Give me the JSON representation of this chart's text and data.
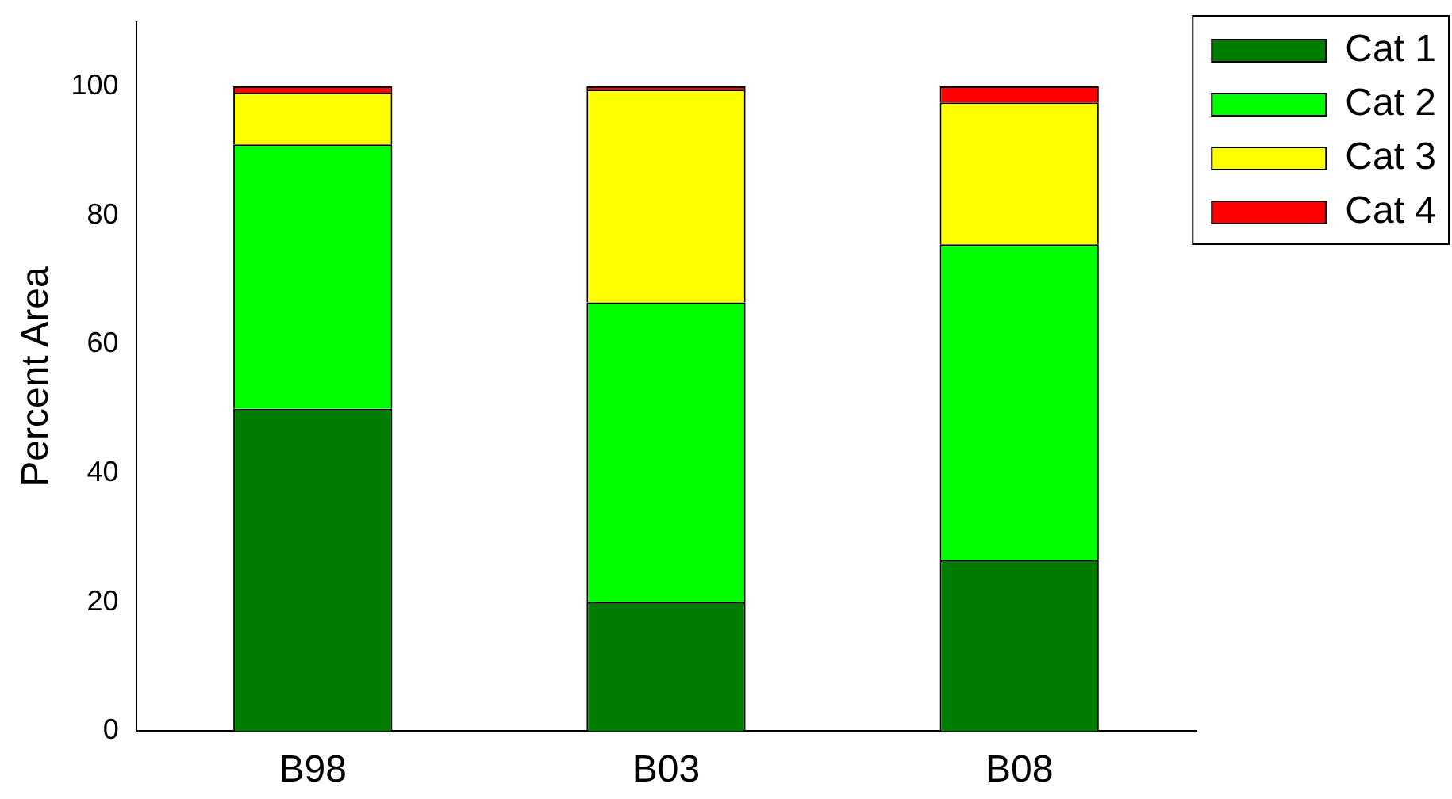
{
  "chart_data": {
    "type": "bar",
    "stacked": true,
    "ylabel": "Percent Area",
    "categories": [
      "B98",
      "B03",
      "B08"
    ],
    "series": [
      {
        "name": "Cat 1",
        "color": "#007c00",
        "values": [
          50,
          20,
          26.5
        ]
      },
      {
        "name": "Cat 2",
        "color": "#00ff00",
        "values": [
          41,
          46.5,
          49
        ]
      },
      {
        "name": "Cat 3",
        "color": "#ffff00",
        "values": [
          8,
          33,
          22
        ]
      },
      {
        "name": "Cat 4",
        "color": "#ff0000",
        "values": [
          1,
          0.5,
          2.5
        ]
      }
    ],
    "ylim": [
      0,
      110
    ],
    "yticks": [
      0,
      20,
      40,
      60,
      80,
      100
    ],
    "grid": false,
    "legend": "right"
  }
}
